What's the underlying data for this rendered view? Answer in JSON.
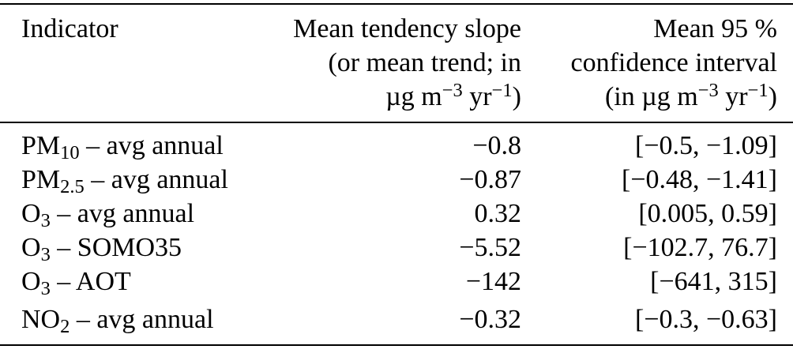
{
  "colors": {
    "background": "#ffffff",
    "text": "#000000",
    "rule": "#000000"
  },
  "table": {
    "header": {
      "indicator": "Indicator",
      "slope_lines": [
        "Mean tendency slope",
        "(or mean trend; in",
        "µg m^{−3} yr^{−1})"
      ],
      "ci_lines": [
        "Mean 95 %",
        "confidence interval",
        "(in µg m^{−3} yr^{−1})"
      ]
    },
    "rows": [
      {
        "indicator": "PM_{10} – avg annual",
        "slope": "−0.8",
        "ci": "[−0.5, −1.09]"
      },
      {
        "indicator": "PM_{2.5} – avg annual",
        "slope": "−0.87",
        "ci": "[−0.48, −1.41]"
      },
      {
        "indicator": "O_{3} – avg annual",
        "slope": "0.32",
        "ci": "[0.005, 0.59]"
      },
      {
        "indicator": "O_{3} – SOMO35",
        "slope": "−5.52",
        "ci": "[−102.7, 76.7]"
      },
      {
        "indicator": "O_{3} – AOT",
        "slope": "−142",
        "ci": "[−641, 315]"
      },
      {
        "indicator": "NO_{2} – avg annual",
        "slope": "−0.32",
        "ci": "[−0.3, −0.63]"
      }
    ]
  }
}
